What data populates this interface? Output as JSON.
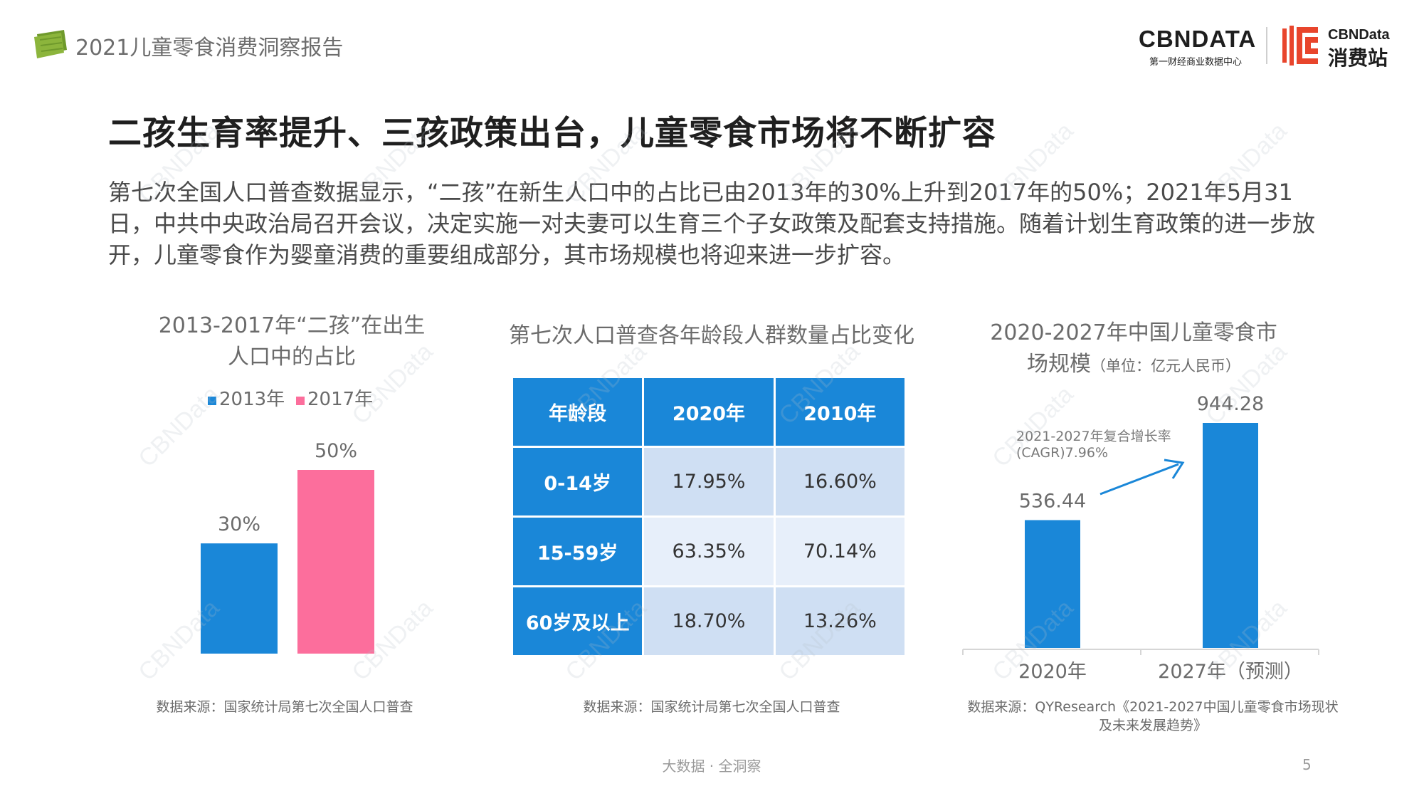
{
  "header": {
    "report_title": "2021儿童零食消费洞察报告",
    "brand_primary": "CBNDATA",
    "brand_primary_sub": "第一财经商业数据中心",
    "brand_secondary_en": "CBNData",
    "brand_secondary_cn": "消费站"
  },
  "headline": "二孩生育率提升、三孩政策出台，儿童零食市场将不断扩容",
  "intro": "第七次全国人口普查数据显示，“二孩”在新生人口中的占比已由2013年的30%上升到2017年的50%；2021年5月31日，中共中央政治局召开会议，决定实施一对夫妻可以生育三个子女政策及配套支持措施。随着计划生育政策的进一步放开，儿童零食作为婴童消费的重要组成部分，其市场规模也将迎来进一步扩容。",
  "chart_data": [
    {
      "type": "bar",
      "title_line1": "2013-2017年“二孩”在出生",
      "title_line2": "人口中的占比",
      "series": [
        {
          "name": "2013年",
          "values": [
            30
          ],
          "label": "30%",
          "color": "#1a87d8"
        },
        {
          "name": "2017年",
          "values": [
            50
          ],
          "label": "50%",
          "color": "#fc6e9c"
        }
      ],
      "unit": "%",
      "source": "数据来源：国家统计局第七次全国人口普查"
    },
    {
      "type": "table",
      "title": "第七次人口普查各年龄段人群数量占比变化",
      "columns": [
        "年龄段",
        "2020年",
        "2010年"
      ],
      "rows": [
        [
          "0-14岁",
          "17.95%",
          "16.60%"
        ],
        [
          "15-59岁",
          "63.35%",
          "70.14%"
        ],
        [
          "60岁及以上",
          "18.70%",
          "13.26%"
        ]
      ],
      "source": "数据来源：国家统计局第七次全国人口普查"
    },
    {
      "type": "bar",
      "title_line1": "2020-2027年中国儿童零食市",
      "title_line2": "场规模",
      "unit_note": "（单位：亿元人民币）",
      "categories": [
        "2020年",
        "2027年（预测）"
      ],
      "values": [
        536.44,
        944.28
      ],
      "value_labels": [
        "536.44",
        "944.28"
      ],
      "color": "#1a87d8",
      "annotation_line1": "2021-2027年复合增长率",
      "annotation_line2": "(CAGR)7.96%",
      "source_line1": "数据来源：QYResearch《2021-2027中国儿童零食市场现状",
      "source_line2": "及未来发展趋势》"
    }
  ],
  "footer": {
    "slogan": "大数据 · 全洞察",
    "page_number": "5"
  },
  "watermark_text": "CBNData"
}
